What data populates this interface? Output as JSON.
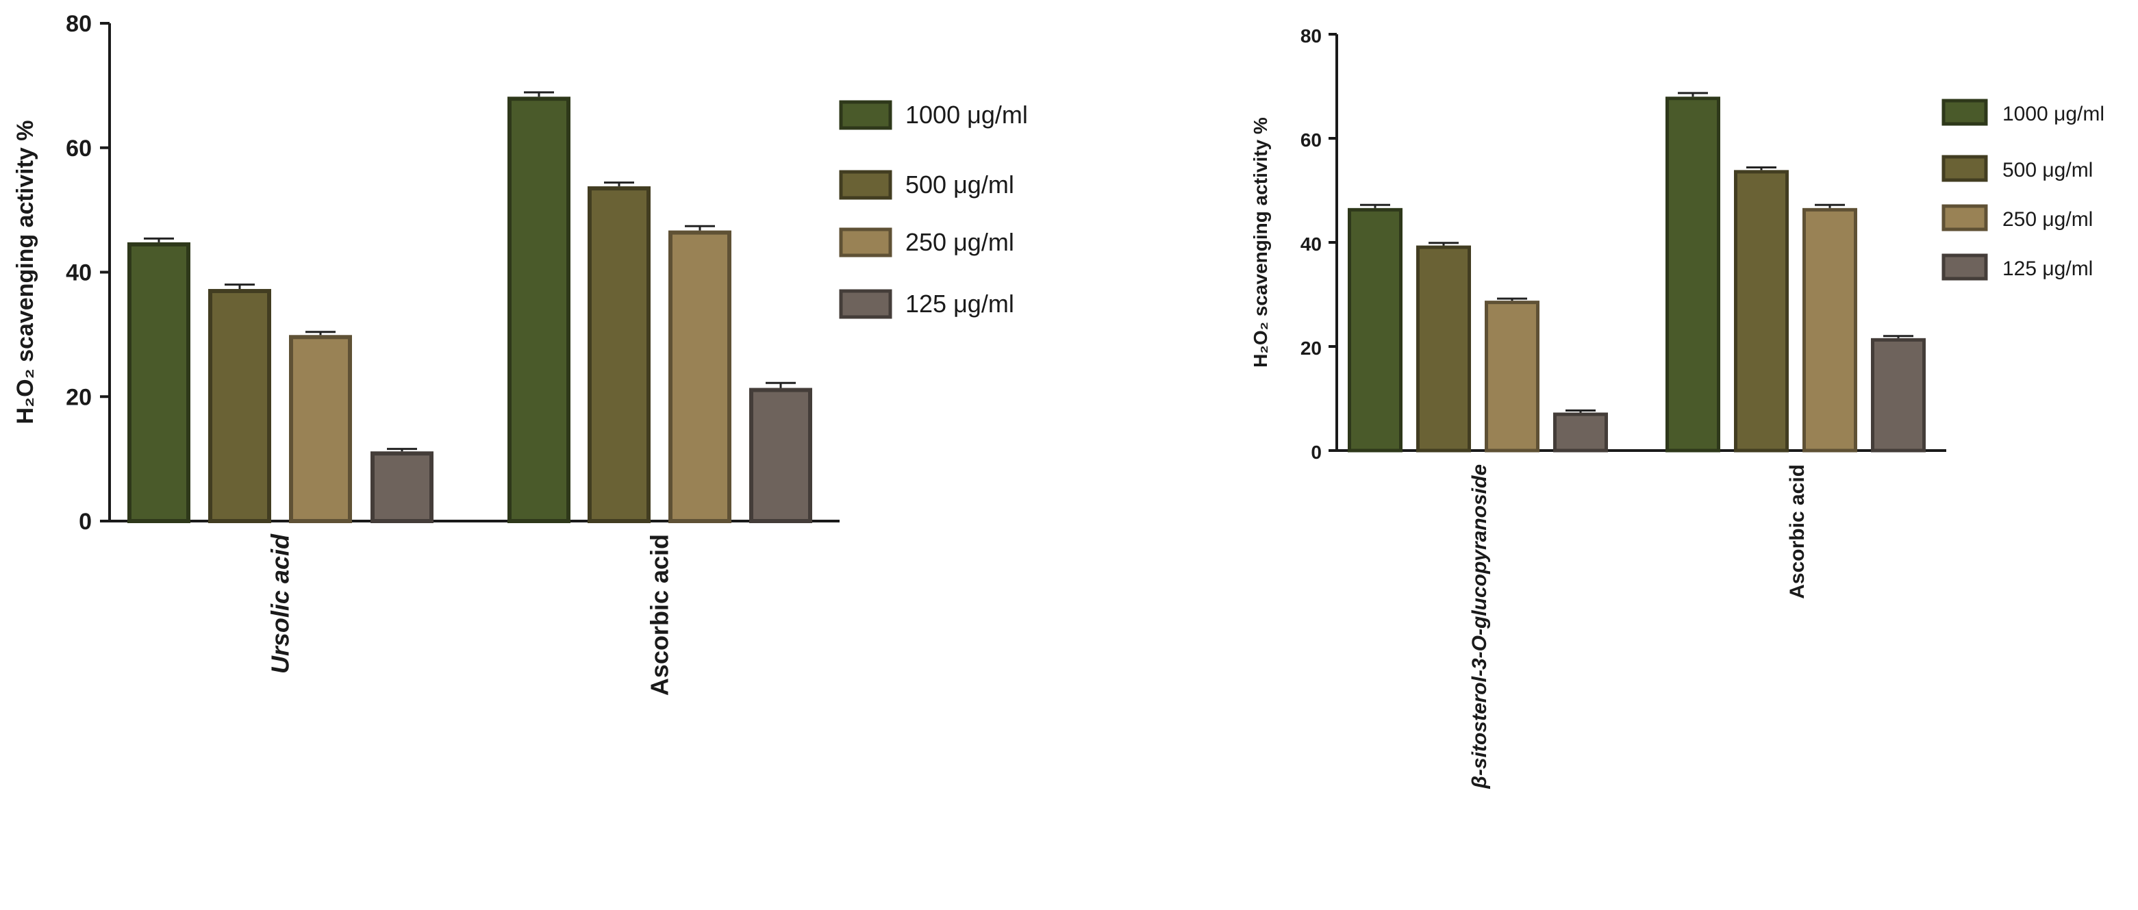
{
  "chart_data": [
    {
      "type": "bar",
      "ylabel": "H₂O₂ scavenging activity %",
      "ylim": [
        0,
        80
      ],
      "yticks": [
        0,
        20,
        40,
        60,
        80
      ],
      "categories": [
        "Ursolic acid",
        "Ascorbic acid"
      ],
      "category_italic": [
        true,
        false
      ],
      "legend_position": "right",
      "series": [
        {
          "name": "1000 μg/ml",
          "color": "#4a5a2a",
          "values": [
            44.8,
            68.2
          ],
          "errors": [
            0.6,
            0.7
          ]
        },
        {
          "name": "500 μg/ml",
          "color": "#6a6235",
          "values": [
            37.3,
            53.8
          ],
          "errors": [
            0.7,
            0.6
          ]
        },
        {
          "name": "250 μg/ml",
          "color": "#998255",
          "values": [
            29.9,
            46.7
          ],
          "errors": [
            0.5,
            0.7
          ]
        },
        {
          "name": "125 μg/ml",
          "color": "#6e635c",
          "values": [
            11.2,
            21.4
          ],
          "errors": [
            0.4,
            0.8
          ]
        }
      ]
    },
    {
      "type": "bar",
      "ylabel": "H₂O₂ scavenging activity %",
      "ylim": [
        0,
        80
      ],
      "yticks": [
        0,
        20,
        40,
        60,
        80
      ],
      "categories": [
        "β-sitosterol-3-O-glucopyranoside",
        "Ascorbic acid"
      ],
      "category_italic": [
        true,
        false
      ],
      "legend_position": "right",
      "series": [
        {
          "name": "1000 μg/ml",
          "color": "#4a5a2a",
          "values": [
            46.6,
            68.0
          ],
          "errors": [
            0.6,
            0.7
          ]
        },
        {
          "name": "500 μg/ml",
          "color": "#6a6235",
          "values": [
            39.4,
            53.9
          ],
          "errors": [
            0.5,
            0.5
          ]
        },
        {
          "name": "250 μg/ml",
          "color": "#998255",
          "values": [
            28.8,
            46.6
          ],
          "errors": [
            0.4,
            0.6
          ]
        },
        {
          "name": "125 μg/ml",
          "color": "#6e635c",
          "values": [
            7.3,
            21.6
          ],
          "errors": [
            0.4,
            0.4
          ]
        }
      ]
    }
  ]
}
